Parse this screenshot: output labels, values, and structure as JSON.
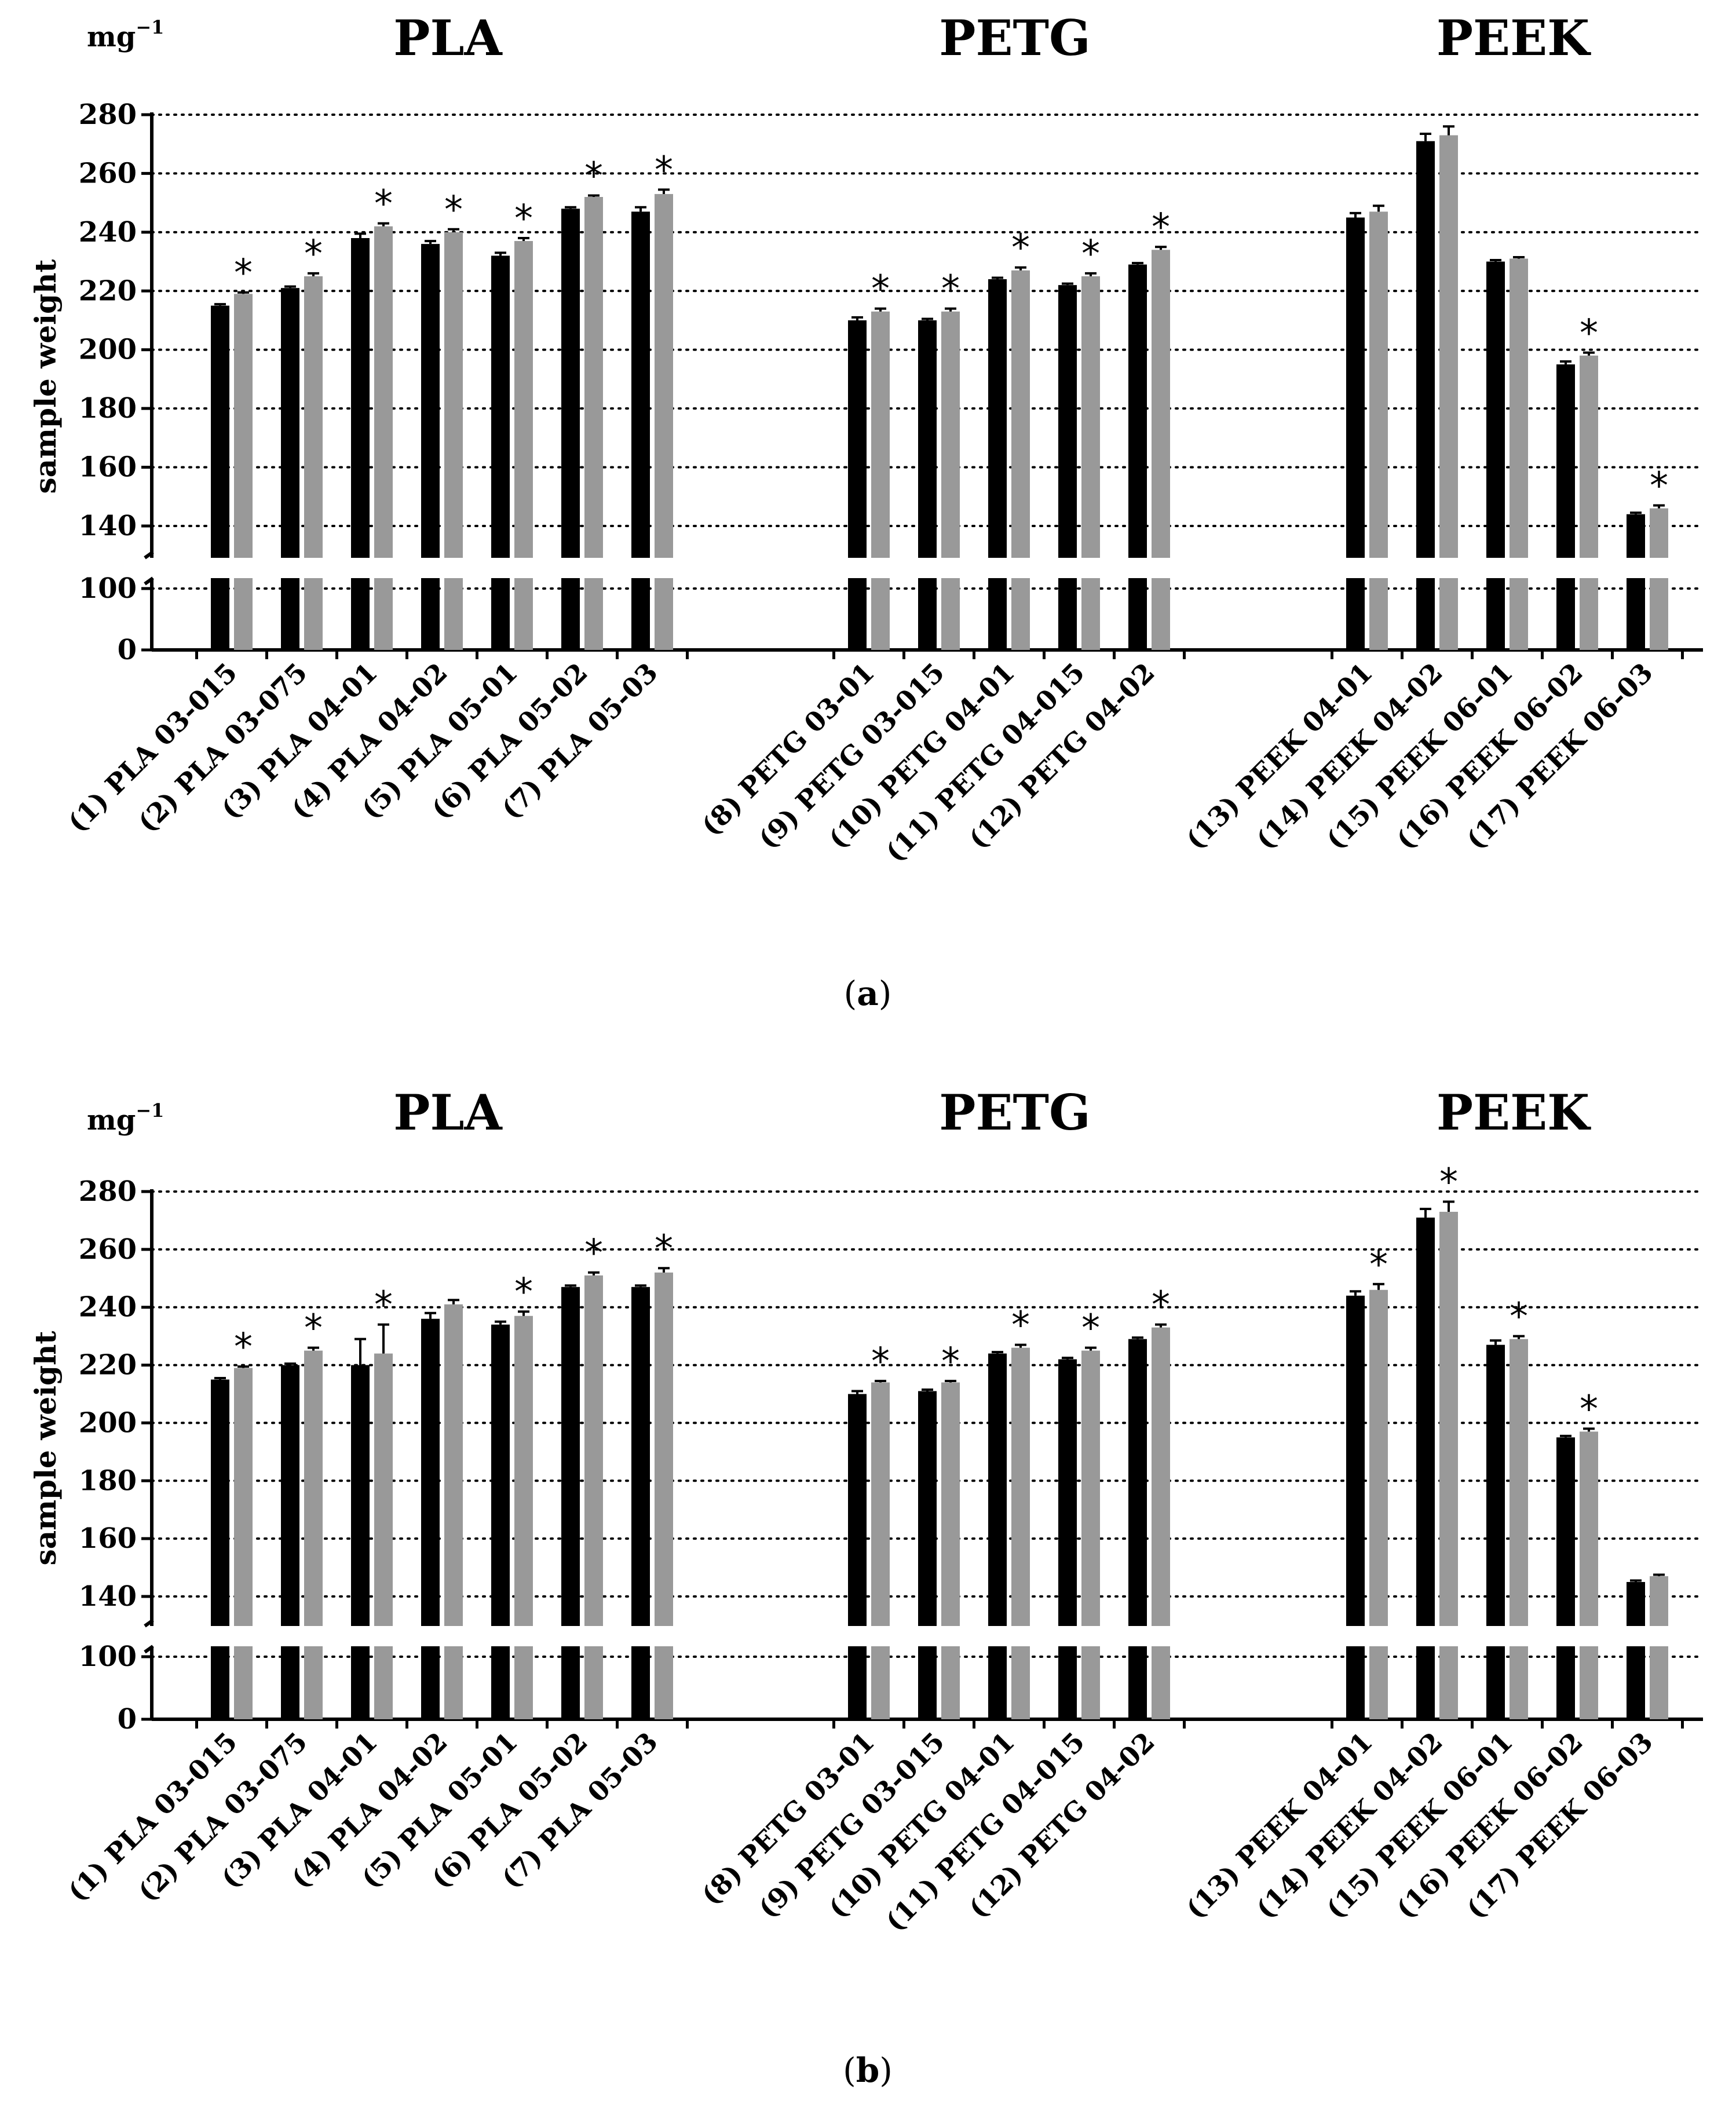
{
  "chart_data": [
    {
      "type": "bar",
      "caption_letter": "a",
      "unit_base": "mg",
      "unit_exp": "−1",
      "ylabel": "sample weight",
      "y_ticks": [
        0,
        100,
        140,
        160,
        180,
        200,
        220,
        240,
        260,
        280
      ],
      "y_axis_break": [
        110,
        130
      ],
      "grid": "dotted horizontal",
      "groups": [
        {
          "title": "PLA",
          "indices": [
            0,
            1,
            2,
            3,
            4,
            5,
            6
          ]
        },
        {
          "title": "PETG",
          "indices": [
            7,
            8,
            9,
            10,
            11
          ]
        },
        {
          "title": "PEEK",
          "indices": [
            12,
            13,
            14,
            15,
            16
          ]
        }
      ],
      "categories": [
        "(1) PLA 03-015",
        "(2) PLA 03-075",
        "(3) PLA 04-01",
        "(4) PLA 04-02",
        "(5) PLA 05-01",
        "(6) PLA 05-02",
        "(7) PLA 05-03",
        "(8) PETG 03-01",
        "(9) PETG 03-015",
        "(10) PETG 04-01",
        "(11) PETG 04-015",
        "(12) PETG 04-02",
        "(13) PEEK 04-01",
        "(14) PEEK 04-02",
        "(15) PEEK 06-01",
        "(16) PEEK 06-02",
        "(17) PEEK 06-03"
      ],
      "series": [
        {
          "name": "black",
          "color": "#000000",
          "values": [
            215,
            221,
            238,
            236,
            232,
            248,
            247,
            210,
            210,
            224,
            222,
            229,
            245,
            271,
            230,
            195,
            144
          ],
          "errors": [
            0.5,
            0.5,
            1.5,
            1,
            1,
            0.5,
            1.5,
            1,
            0.5,
            0.5,
            0.5,
            0.5,
            1.5,
            2.5,
            0.5,
            1,
            0.5
          ]
        },
        {
          "name": "gray",
          "color": "#999999",
          "values": [
            219,
            225,
            242,
            240,
            237,
            252,
            253,
            213,
            213,
            227,
            225,
            234,
            247,
            273,
            231,
            198,
            146
          ],
          "errors": [
            0.5,
            1,
            1,
            1,
            1,
            0.5,
            1.5,
            1,
            1,
            1,
            1,
            1,
            2,
            3,
            0.5,
            1,
            1
          ]
        }
      ],
      "significance": [
        true,
        true,
        true,
        true,
        true,
        true,
        true,
        true,
        true,
        true,
        true,
        true,
        false,
        false,
        false,
        true,
        true
      ]
    },
    {
      "type": "bar",
      "caption_letter": "b",
      "unit_base": "mg",
      "unit_exp": "−1",
      "ylabel": "sample weight",
      "y_ticks": [
        0,
        100,
        140,
        160,
        180,
        200,
        220,
        240,
        260,
        280
      ],
      "y_axis_break": [
        110,
        130
      ],
      "grid": "dotted horizontal",
      "groups": [
        {
          "title": "PLA",
          "indices": [
            0,
            1,
            2,
            3,
            4,
            5,
            6
          ]
        },
        {
          "title": "PETG",
          "indices": [
            7,
            8,
            9,
            10,
            11
          ]
        },
        {
          "title": "PEEK",
          "indices": [
            12,
            13,
            14,
            15,
            16
          ]
        }
      ],
      "categories": [
        "(1) PLA 03-015",
        "(2) PLA 03-075",
        "(3) PLA 04-01",
        "(4) PLA 04-02",
        "(5) PLA 05-01",
        "(6) PLA 05-02",
        "(7) PLA 05-03",
        "(8) PETG 03-01",
        "(9) PETG 03-015",
        "(10) PETG 04-01",
        "(11) PETG 04-015",
        "(12) PETG 04-02",
        "(13) PEEK 04-01",
        "(14) PEEK 04-02",
        "(15) PEEK 06-01",
        "(16) PEEK 06-02",
        "(17) PEEK 06-03"
      ],
      "series": [
        {
          "name": "black",
          "color": "#000000",
          "values": [
            215,
            220,
            220,
            236,
            234,
            247,
            247,
            210,
            211,
            224,
            222,
            229,
            244,
            271,
            227,
            195,
            145
          ],
          "errors": [
            0.5,
            0.5,
            9,
            2,
            1,
            0.5,
            0.5,
            1,
            0.5,
            0.5,
            0.5,
            0.5,
            1.5,
            3,
            1.5,
            0.5,
            0.5
          ]
        },
        {
          "name": "gray",
          "color": "#999999",
          "values": [
            219,
            225,
            224,
            241,
            237,
            251,
            252,
            214,
            214,
            226,
            225,
            233,
            246,
            273,
            229,
            197,
            147
          ],
          "errors": [
            0.5,
            1,
            10,
            1.5,
            1.5,
            1,
            1.5,
            0.5,
            0.5,
            1,
            1,
            1,
            2,
            3.5,
            1,
            1,
            0.5
          ]
        }
      ],
      "significance": [
        true,
        true,
        true,
        false,
        true,
        true,
        true,
        true,
        true,
        true,
        true,
        true,
        true,
        true,
        true,
        true,
        false
      ]
    }
  ]
}
